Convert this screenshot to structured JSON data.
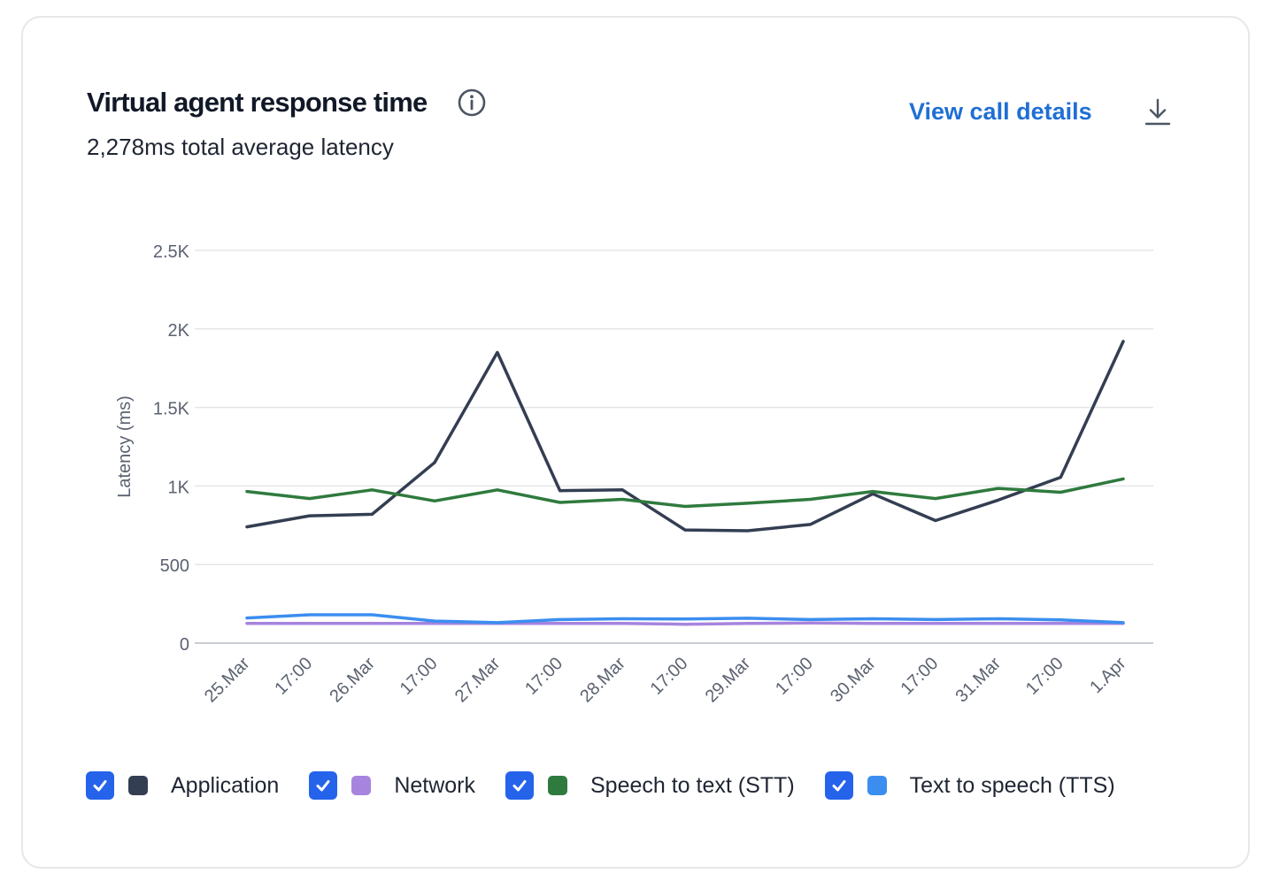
{
  "card": {
    "title": "Virtual agent response time",
    "subtitle": "2,278ms total average latency",
    "view_details_label": "View call details",
    "info_icon": "info-circle-icon",
    "download_icon": "download-icon"
  },
  "chart_data": {
    "type": "line",
    "ylabel": "Latency (ms)",
    "xlabel": "",
    "ylim": [
      0,
      2500
    ],
    "yticks": [
      0,
      500,
      1000,
      1500,
      2000,
      2500
    ],
    "ytick_labels": [
      "0",
      "500",
      "1K",
      "1.5K",
      "2K",
      "2.5K"
    ],
    "x": [
      "25.Mar",
      "17:00",
      "26.Mar",
      "17:00",
      "27.Mar",
      "17:00",
      "28.Mar",
      "17:00",
      "29.Mar",
      "17:00",
      "30.Mar",
      "17:00",
      "31.Mar",
      "17:00",
      "1.Apr"
    ],
    "grid": true,
    "legend_position": "bottom",
    "series": [
      {
        "name": "Application",
        "color": "#343e52",
        "values": [
          740,
          810,
          820,
          1150,
          1850,
          970,
          975,
          720,
          715,
          755,
          950,
          780,
          910,
          1055,
          1920
        ]
      },
      {
        "name": "Network",
        "color": "#a784de",
        "values": [
          125,
          125,
          125,
          125,
          125,
          125,
          125,
          120,
          125,
          128,
          125,
          125,
          125,
          125,
          125
        ]
      },
      {
        "name": "Speech to text (STT)",
        "color": "#2f7a3e",
        "values": [
          965,
          920,
          975,
          905,
          975,
          895,
          915,
          870,
          890,
          915,
          965,
          920,
          985,
          960,
          1045
        ]
      },
      {
        "name": "Text to speech (TTS)",
        "color": "#3b8ef0",
        "values": [
          160,
          180,
          180,
          140,
          130,
          150,
          155,
          153,
          158,
          150,
          155,
          150,
          155,
          148,
          130
        ]
      }
    ]
  },
  "legend": {
    "checkbox_icon": "checkmark-icon"
  }
}
